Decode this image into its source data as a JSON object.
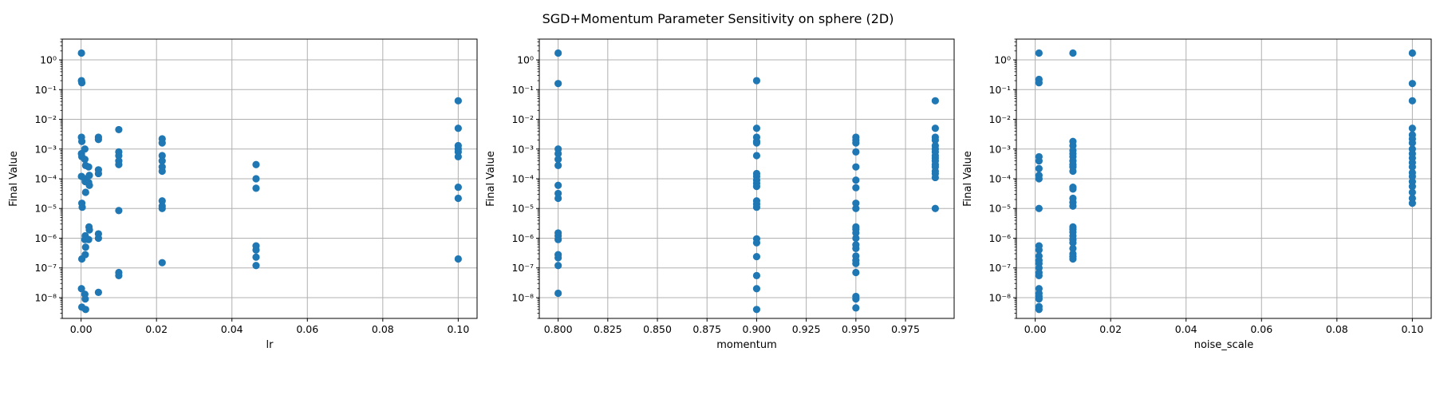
{
  "figure": {
    "title": "SGD+Momentum Parameter Sensitivity on sphere (2D)"
  },
  "colors": {
    "marker": "#1f77b4",
    "grid": "#b0b0b0",
    "axis": "#000000"
  },
  "chart_data": [
    {
      "type": "scatter",
      "xlabel": "lr",
      "ylabel": "Final Value",
      "yscale": "log",
      "grid": true,
      "xlim": [
        -0.005,
        0.105
      ],
      "ylim": [
        2e-09,
        5
      ],
      "xticks": [
        0.0,
        0.02,
        0.04,
        0.06,
        0.08,
        0.1
      ],
      "xtick_labels": [
        "0.00",
        "0.02",
        "0.04",
        "0.06",
        "0.08",
        "0.10"
      ],
      "yticks": [
        1e-08,
        1e-07,
        1e-06,
        1e-05,
        0.0001,
        0.001,
        0.01,
        0.1,
        1
      ],
      "points": [
        [
          0.0001,
          1.7
        ],
        [
          0.0001,
          0.2
        ],
        [
          0.0002,
          0.17
        ],
        [
          0.0001,
          0.0025
        ],
        [
          0.0002,
          0.0018
        ],
        [
          0.0001,
          0.0007
        ],
        [
          0.0002,
          0.00055
        ],
        [
          0.0001,
          0.00012
        ],
        [
          0.0002,
          1.5e-05
        ],
        [
          0.0003,
          1.1e-05
        ],
        [
          0.0002,
          2e-07
        ],
        [
          0.0001,
          2e-08
        ],
        [
          0.0002,
          4.8e-09
        ],
        [
          0.001,
          0.001
        ],
        [
          0.001,
          0.00045
        ],
        [
          0.0012,
          0.00028
        ],
        [
          0.001,
          0.0001
        ],
        [
          0.0011,
          8e-05
        ],
        [
          0.0012,
          3.5e-05
        ],
        [
          0.0011,
          1.2e-06
        ],
        [
          0.001,
          9e-07
        ],
        [
          0.0012,
          5e-07
        ],
        [
          0.0011,
          2.8e-07
        ],
        [
          0.001,
          1.3e-08
        ],
        [
          0.0011,
          9e-09
        ],
        [
          0.0012,
          4e-09
        ],
        [
          0.002,
          0.00025
        ],
        [
          0.0022,
          0.00013
        ],
        [
          0.002,
          7.5e-05
        ],
        [
          0.0022,
          6e-05
        ],
        [
          0.0021,
          2.4e-06
        ],
        [
          0.0022,
          1.9e-06
        ],
        [
          0.002,
          9e-07
        ],
        [
          0.0046,
          0.0025
        ],
        [
          0.0046,
          0.0021
        ],
        [
          0.0046,
          0.0002
        ],
        [
          0.0046,
          0.00015
        ],
        [
          0.0046,
          1.4e-06
        ],
        [
          0.0046,
          1e-06
        ],
        [
          0.0046,
          1.5e-08
        ],
        [
          0.01,
          0.0045
        ],
        [
          0.01,
          0.0008
        ],
        [
          0.01,
          0.0006
        ],
        [
          0.01,
          0.0004
        ],
        [
          0.01,
          0.0003
        ],
        [
          0.01,
          8.5e-06
        ],
        [
          0.01,
          7e-08
        ],
        [
          0.01,
          5.5e-08
        ],
        [
          0.0215,
          0.0022
        ],
        [
          0.0215,
          0.0016
        ],
        [
          0.0215,
          0.0006
        ],
        [
          0.0215,
          0.0004
        ],
        [
          0.0215,
          0.00025
        ],
        [
          0.0215,
          0.00018
        ],
        [
          0.0215,
          1.8e-05
        ],
        [
          0.0215,
          1.2e-05
        ],
        [
          0.0215,
          1e-05
        ],
        [
          0.0215,
          1.5e-07
        ],
        [
          0.0464,
          0.0003
        ],
        [
          0.0464,
          0.0001
        ],
        [
          0.0464,
          4.8e-05
        ],
        [
          0.0464,
          5.5e-07
        ],
        [
          0.0464,
          4e-07
        ],
        [
          0.0464,
          2.3e-07
        ],
        [
          0.0464,
          1.2e-07
        ],
        [
          0.1,
          0.042
        ],
        [
          0.1,
          0.005
        ],
        [
          0.1,
          0.0013
        ],
        [
          0.1,
          0.001
        ],
        [
          0.1,
          0.0008
        ],
        [
          0.1,
          0.00055
        ],
        [
          0.1,
          5.2e-05
        ],
        [
          0.1,
          2.2e-05
        ],
        [
          0.1,
          2e-07
        ]
      ]
    },
    {
      "type": "scatter",
      "xlabel": "momentum",
      "ylabel": "Final Value",
      "yscale": "log",
      "grid": true,
      "xlim": [
        0.7905,
        0.9995
      ],
      "ylim": [
        2e-09,
        5
      ],
      "xticks": [
        0.8,
        0.825,
        0.85,
        0.875,
        0.9,
        0.925,
        0.95,
        0.975
      ],
      "xtick_labels": [
        "0.800",
        "0.825",
        "0.850",
        "0.875",
        "0.900",
        "0.925",
        "0.950",
        "0.975"
      ],
      "yticks": [
        1e-08,
        1e-07,
        1e-06,
        1e-05,
        0.0001,
        0.001,
        0.01,
        0.1,
        1
      ],
      "points": [
        [
          0.8,
          1.7
        ],
        [
          0.8,
          0.16
        ],
        [
          0.8,
          0.001
        ],
        [
          0.8,
          0.0007
        ],
        [
          0.8,
          0.00045
        ],
        [
          0.8,
          0.00028
        ],
        [
          0.8,
          6e-05
        ],
        [
          0.8,
          3.2e-05
        ],
        [
          0.8,
          2.2e-05
        ],
        [
          0.8,
          1.5e-06
        ],
        [
          0.8,
          1.2e-06
        ],
        [
          0.8,
          9e-07
        ],
        [
          0.8,
          2.8e-07
        ],
        [
          0.8,
          2.2e-07
        ],
        [
          0.8,
          1.2e-07
        ],
        [
          0.8,
          1.4e-08
        ],
        [
          0.9,
          0.2
        ],
        [
          0.9,
          0.005
        ],
        [
          0.9,
          0.0025
        ],
        [
          0.9,
          0.0018
        ],
        [
          0.9,
          0.0016
        ],
        [
          0.9,
          0.0006
        ],
        [
          0.9,
          0.00015
        ],
        [
          0.9,
          0.00012
        ],
        [
          0.9,
          9e-05
        ],
        [
          0.9,
          7e-05
        ],
        [
          0.9,
          5.5e-05
        ],
        [
          0.9,
          1.8e-05
        ],
        [
          0.9,
          1.4e-05
        ],
        [
          0.9,
          1.1e-05
        ],
        [
          0.9,
          9.5e-07
        ],
        [
          0.9,
          7e-07
        ],
        [
          0.9,
          2.4e-07
        ],
        [
          0.9,
          5.5e-08
        ],
        [
          0.9,
          2e-08
        ],
        [
          0.9,
          4e-09
        ],
        [
          0.95,
          0.0025
        ],
        [
          0.95,
          0.002
        ],
        [
          0.95,
          0.0016
        ],
        [
          0.95,
          0.0008
        ],
        [
          0.95,
          0.00025
        ],
        [
          0.95,
          9e-05
        ],
        [
          0.95,
          5e-05
        ],
        [
          0.95,
          1.5e-05
        ],
        [
          0.95,
          1e-05
        ],
        [
          0.95,
          2.4e-06
        ],
        [
          0.95,
          2e-06
        ],
        [
          0.95,
          1.5e-06
        ],
        [
          0.95,
          1e-06
        ],
        [
          0.95,
          6e-07
        ],
        [
          0.95,
          4.5e-07
        ],
        [
          0.95,
          2.5e-07
        ],
        [
          0.95,
          1.8e-07
        ],
        [
          0.95,
          1.4e-07
        ],
        [
          0.95,
          7e-08
        ],
        [
          0.95,
          1.1e-08
        ],
        [
          0.95,
          9e-09
        ],
        [
          0.95,
          4.5e-09
        ],
        [
          0.99,
          0.042
        ],
        [
          0.99,
          0.005
        ],
        [
          0.99,
          0.0025
        ],
        [
          0.99,
          0.002
        ],
        [
          0.99,
          0.0013
        ],
        [
          0.99,
          0.001
        ],
        [
          0.99,
          0.0008
        ],
        [
          0.99,
          0.0006
        ],
        [
          0.99,
          0.0005
        ],
        [
          0.99,
          0.0004
        ],
        [
          0.99,
          0.0003
        ],
        [
          0.99,
          0.00025
        ],
        [
          0.99,
          0.00018
        ],
        [
          0.99,
          0.00015
        ],
        [
          0.99,
          0.00011
        ],
        [
          0.99,
          1e-05
        ]
      ]
    },
    {
      "type": "scatter",
      "xlabel": "noise_scale",
      "ylabel": "Final Value",
      "yscale": "log",
      "grid": true,
      "xlim": [
        -0.005,
        0.105
      ],
      "ylim": [
        2e-09,
        5
      ],
      "xticks": [
        0.0,
        0.02,
        0.04,
        0.06,
        0.08,
        0.1
      ],
      "xtick_labels": [
        "0.00",
        "0.02",
        "0.04",
        "0.06",
        "0.08",
        "0.10"
      ],
      "yticks": [
        1e-08,
        1e-07,
        1e-06,
        1e-05,
        0.0001,
        0.001,
        0.01,
        0.1,
        1
      ],
      "points": [
        [
          0.001,
          1.7
        ],
        [
          0.001,
          0.22
        ],
        [
          0.001,
          0.17
        ],
        [
          0.001,
          0.00055
        ],
        [
          0.001,
          0.0004
        ],
        [
          0.001,
          0.00022
        ],
        [
          0.001,
          0.00013
        ],
        [
          0.001,
          0.0001
        ],
        [
          0.001,
          1e-05
        ],
        [
          0.001,
          5.5e-07
        ],
        [
          0.001,
          4e-07
        ],
        [
          0.001,
          2.5e-07
        ],
        [
          0.001,
          1.8e-07
        ],
        [
          0.001,
          1.4e-07
        ],
        [
          0.001,
          1e-07
        ],
        [
          0.001,
          7e-08
        ],
        [
          0.001,
          5.5e-08
        ],
        [
          0.001,
          2e-08
        ],
        [
          0.001,
          1.4e-08
        ],
        [
          0.001,
          1.1e-08
        ],
        [
          0.001,
          9e-09
        ],
        [
          0.001,
          5e-09
        ],
        [
          0.001,
          4e-09
        ],
        [
          0.01,
          1.7
        ],
        [
          0.01,
          0.0018
        ],
        [
          0.01,
          0.0013
        ],
        [
          0.01,
          0.0009
        ],
        [
          0.01,
          0.0007
        ],
        [
          0.01,
          0.00055
        ],
        [
          0.01,
          0.0004
        ],
        [
          0.01,
          0.0003
        ],
        [
          0.01,
          0.00025
        ],
        [
          0.01,
          0.00018
        ],
        [
          0.01,
          5.2e-05
        ],
        [
          0.01,
          4.5e-05
        ],
        [
          0.01,
          2.2e-05
        ],
        [
          0.01,
          1.6e-05
        ],
        [
          0.01,
          1.2e-05
        ],
        [
          0.01,
          2.4e-06
        ],
        [
          0.01,
          2e-06
        ],
        [
          0.01,
          1.6e-06
        ],
        [
          0.01,
          1.2e-06
        ],
        [
          0.01,
          9e-07
        ],
        [
          0.01,
          7e-07
        ],
        [
          0.01,
          4.5e-07
        ],
        [
          0.01,
          3e-07
        ],
        [
          0.01,
          2.4e-07
        ],
        [
          0.01,
          2e-07
        ],
        [
          0.1,
          1.7
        ],
        [
          0.1,
          0.16
        ],
        [
          0.1,
          0.042
        ],
        [
          0.1,
          0.005
        ],
        [
          0.1,
          0.003
        ],
        [
          0.1,
          0.0022
        ],
        [
          0.1,
          0.0016
        ],
        [
          0.1,
          0.001
        ],
        [
          0.1,
          0.0007
        ],
        [
          0.1,
          0.0005
        ],
        [
          0.1,
          0.00035
        ],
        [
          0.1,
          0.00025
        ],
        [
          0.1,
          0.00016
        ],
        [
          0.1,
          0.00012
        ],
        [
          0.1,
          8e-05
        ],
        [
          0.1,
          5.5e-05
        ],
        [
          0.1,
          3.5e-05
        ],
        [
          0.1,
          2.2e-05
        ],
        [
          0.1,
          1.5e-05
        ]
      ]
    }
  ]
}
